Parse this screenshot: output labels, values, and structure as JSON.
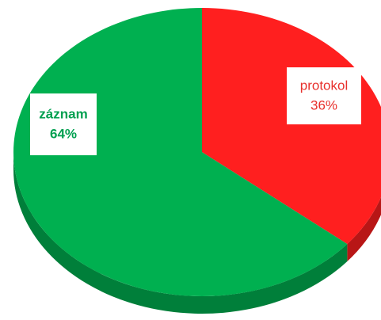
{
  "chart_data": {
    "type": "pie",
    "categories": [
      "protokol",
      "záznam"
    ],
    "values": [
      36,
      64
    ],
    "value_labels": [
      "36%",
      "64%"
    ],
    "colors": [
      "#ff1f1f",
      "#00b050"
    ]
  }
}
